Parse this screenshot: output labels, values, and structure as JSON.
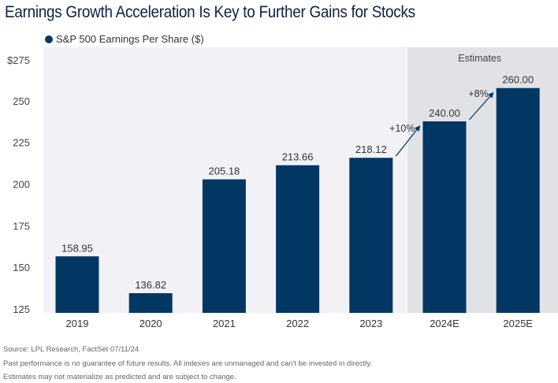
{
  "chart_data": {
    "type": "bar",
    "title": "Earnings Growth Acceleration Is Key to Further Gains for Stocks",
    "legend": {
      "label": "S&P 500 Earnings Per Share ($)",
      "placement": "top-left"
    },
    "categories": [
      "2019",
      "2020",
      "2021",
      "2022",
      "2023",
      "2024E",
      "2025E"
    ],
    "series": [
      {
        "name": "S&P 500 Earnings Per Share ($)",
        "values": [
          158.95,
          136.82,
          205.18,
          213.66,
          218.12,
          240.0,
          260.0
        ]
      }
    ],
    "data_labels": [
      "158.95",
      "136.82",
      "205.18",
      "213.66",
      "218.12",
      "240.00",
      "260.00"
    ],
    "yticks": [
      "$275",
      "250",
      "225",
      "200",
      "175",
      "150",
      "125"
    ],
    "ytick_values": [
      275,
      250,
      225,
      200,
      175,
      150,
      125
    ],
    "ylim": [
      125,
      280
    ],
    "grid": false,
    "shaded_region": {
      "label": "Estimates",
      "categories": [
        "2024E",
        "2025E"
      ]
    },
    "annotations": [
      {
        "text": "+10%",
        "from": "2023",
        "to": "2024E"
      },
      {
        "text": "+8%",
        "from": "2024E",
        "to": "2025E"
      }
    ],
    "colors": {
      "bar": "#023764",
      "plot_bg": "#f2f2f6",
      "estimates_bg": "#e1e2e6"
    }
  },
  "footer": [
    "Source: LPL Research, FactSet 07/11/24",
    "Past performance is no guarantee of future results. All indexes are unmanaged and can't be invested in directly.",
    "Estimates may not materialize as predicted and are subject to change."
  ]
}
